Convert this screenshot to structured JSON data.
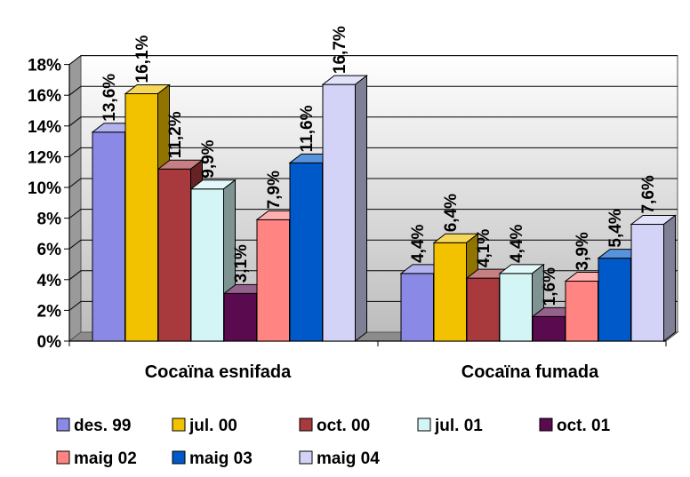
{
  "chart_data": {
    "type": "bar",
    "categories": [
      "Cocaïna esnifada",
      "Cocaïna fumada"
    ],
    "series": [
      {
        "name": "des. 99",
        "values": [
          13.6,
          4.4
        ],
        "labels": [
          "13,6%",
          "4,4%"
        ],
        "color": "#8a8ae6"
      },
      {
        "name": "jul. 00",
        "values": [
          16.1,
          6.4
        ],
        "labels": [
          "16,1%",
          "6,4%"
        ],
        "color": "#f2c200"
      },
      {
        "name": "oct. 00",
        "values": [
          11.2,
          4.1
        ],
        "labels": [
          "11,2%",
          "4,1%"
        ],
        "color": "#a83a3e"
      },
      {
        "name": "jul. 01",
        "values": [
          9.9,
          4.4
        ],
        "labels": [
          "9,9%",
          "4,4%"
        ],
        "color": "#d4f5f5"
      },
      {
        "name": "oct. 01",
        "values": [
          3.1,
          1.6
        ],
        "labels": [
          "3,1%",
          "1,6%"
        ],
        "color": "#5a0a4e"
      },
      {
        "name": "maig 02",
        "values": [
          7.9,
          3.9
        ],
        "labels": [
          "7,9%",
          "3,9%"
        ],
        "color": "#ff8482"
      },
      {
        "name": "maig 03",
        "values": [
          11.6,
          5.4
        ],
        "labels": [
          "11,6%",
          "5,4%"
        ],
        "color": "#0059c8"
      },
      {
        "name": "maig 04",
        "values": [
          16.7,
          7.6
        ],
        "labels": [
          "16,7%",
          "7,6%"
        ],
        "color": "#d3d3f8"
      }
    ],
    "y_ticks": [
      "0%",
      "2%",
      "4%",
      "6%",
      "8%",
      "10%",
      "12%",
      "14%",
      "16%",
      "18%"
    ],
    "ylim": [
      0,
      18
    ],
    "grid": true,
    "legend_position": "bottom",
    "title": "",
    "xlabel": "",
    "ylabel": ""
  }
}
